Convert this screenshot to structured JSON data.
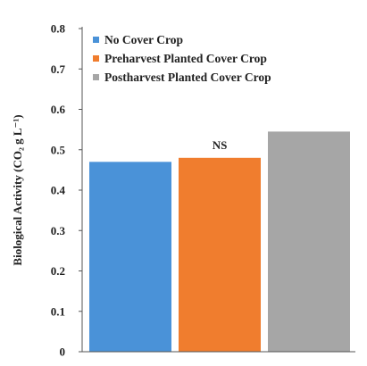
{
  "chart_data": {
    "type": "bar",
    "categories": [
      "No Cover Crop",
      "Preharvest Planted Cover Crop",
      "Postharvest Planted Cover Crop"
    ],
    "values": [
      0.47,
      0.48,
      0.545
    ],
    "colors": [
      "#4a92d8",
      "#f07d2e",
      "#a6a6a6"
    ],
    "ylabel": "Biological Activity (CO₂ g L⁻¹)",
    "ylim": [
      0,
      0.8
    ],
    "yticks": [
      "0",
      "0.1",
      "0.2",
      "0.3",
      "0.4",
      "0.5",
      "0.6",
      "0.7",
      "0.8"
    ],
    "annotation": "NS",
    "legend": [
      "No Cover Crop",
      "Preharvest Planted Cover Crop",
      "Postharvest Planted Cover Crop"
    ],
    "legend_position": "top-left",
    "grid": false
  }
}
